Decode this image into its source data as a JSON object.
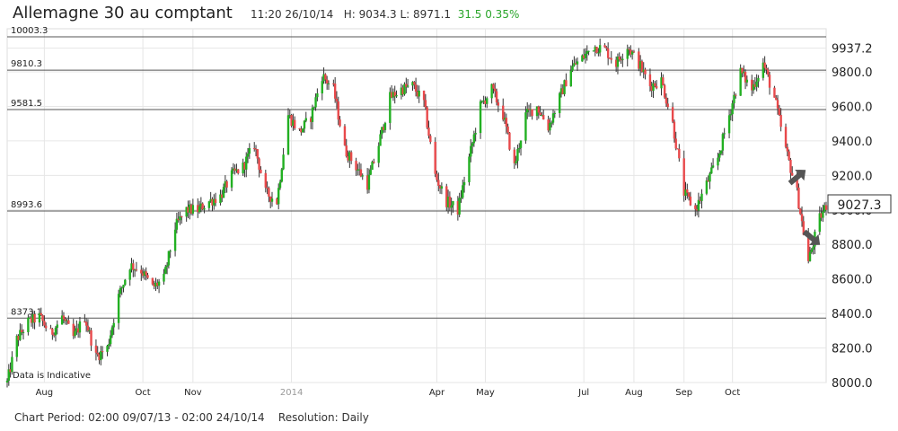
{
  "header": {
    "title": "Allemagne 30 au comptant",
    "time": "11:20 26/10/14",
    "high_label": "H:",
    "high": "9034.3",
    "low_label": "L:",
    "low": "8971.1",
    "change": "31.5",
    "change_pct": "0.35%"
  },
  "footer": {
    "period_label": "Chart Period:",
    "period": "02:00 09/07/13 - 02:00 24/10/14",
    "resolution_label": "Resolution:",
    "resolution": "Daily"
  },
  "colors": {
    "up": "#22b022",
    "down": "#e8494b",
    "wick": "#333333",
    "grid": "#e6e6e6",
    "level_line": "#555555",
    "positive_text": "#2aa52a",
    "arrow": "#555555"
  },
  "chart_data": {
    "type": "candlestick",
    "annotation": "Data is Indicative",
    "current_value": "9027.3",
    "ylim": [
      8000,
      10050
    ],
    "y_ticks": [
      "8000.0",
      "8200.0",
      "8400.0",
      "8600.0",
      "8800.0",
      "9000.0",
      "9200.0",
      "9400.0",
      "9600.0",
      "9800.0",
      "9937.2"
    ],
    "y_tick_values": [
      8000,
      8200,
      8400,
      8600,
      8800,
      9000,
      9200,
      9400,
      9600,
      9800,
      9937.2
    ],
    "x_ticks": [
      "Aug",
      "Oct",
      "Nov",
      "2014",
      "Apr",
      "May",
      "Jul",
      "Aug",
      "Sep",
      "Oct"
    ],
    "x_tick_dates": [
      "2013-08-01",
      "2013-10-01",
      "2013-11-01",
      "2014-01-01",
      "2014-04-01",
      "2014-05-01",
      "2014-07-01",
      "2014-08-01",
      "2014-09-01",
      "2014-10-01"
    ],
    "x_range": [
      "2013-07-09",
      "2014-11-28"
    ],
    "levels": [
      {
        "label": "10003.3",
        "value": 10003.3
      },
      {
        "label": "9810.3",
        "value": 9810.3
      },
      {
        "label": "9581.5",
        "value": 9581.5
      },
      {
        "label": "8993.6",
        "value": 8993.6
      },
      {
        "label": "8373.1",
        "value": 8373.1
      }
    ],
    "arrows": [
      "up",
      "down"
    ],
    "series_points": [
      [
        "2013-07-09",
        8000
      ],
      [
        "2013-07-15",
        8250
      ],
      [
        "2013-07-22",
        8350
      ],
      [
        "2013-07-29",
        8380
      ],
      [
        "2013-08-05",
        8280
      ],
      [
        "2013-08-12",
        8380
      ],
      [
        "2013-08-19",
        8260
      ],
      [
        "2013-08-26",
        8380
      ],
      [
        "2013-09-02",
        8150
      ],
      [
        "2013-09-09",
        8200
      ],
      [
        "2013-09-16",
        8500
      ],
      [
        "2013-09-23",
        8680
      ],
      [
        "2013-09-30",
        8650
      ],
      [
        "2013-10-07",
        8550
      ],
      [
        "2013-10-14",
        8600
      ],
      [
        "2013-10-21",
        8900
      ],
      [
        "2013-10-28",
        9000
      ],
      [
        "2013-11-04",
        9000
      ],
      [
        "2013-11-11",
        9050
      ],
      [
        "2013-11-18",
        9080
      ],
      [
        "2013-11-25",
        9200
      ],
      [
        "2013-12-02",
        9250
      ],
      [
        "2013-12-09",
        9380
      ],
      [
        "2013-12-16",
        9100
      ],
      [
        "2013-12-23",
        9050
      ],
      [
        "2013-12-30",
        9550
      ],
      [
        "2014-01-06",
        9450
      ],
      [
        "2014-01-13",
        9540
      ],
      [
        "2014-01-20",
        9780
      ],
      [
        "2014-01-27",
        9700
      ],
      [
        "2014-02-03",
        9350
      ],
      [
        "2014-02-10",
        9250
      ],
      [
        "2014-02-17",
        9150
      ],
      [
        "2014-02-24",
        9380
      ],
      [
        "2014-03-03",
        9650
      ],
      [
        "2014-03-10",
        9700
      ],
      [
        "2014-03-17",
        9720
      ],
      [
        "2014-03-24",
        9620
      ],
      [
        "2014-03-31",
        9200
      ],
      [
        "2014-04-07",
        9050
      ],
      [
        "2014-04-14",
        9000
      ],
      [
        "2014-04-21",
        9300
      ],
      [
        "2014-04-28",
        9600
      ],
      [
        "2014-05-05",
        9700
      ],
      [
        "2014-05-12",
        9550
      ],
      [
        "2014-05-19",
        9250
      ],
      [
        "2014-05-26",
        9550
      ],
      [
        "2014-06-02",
        9600
      ],
      [
        "2014-06-09",
        9480
      ],
      [
        "2014-06-16",
        9650
      ],
      [
        "2014-06-23",
        9820
      ],
      [
        "2014-06-30",
        9880
      ],
      [
        "2014-07-07",
        9950
      ],
      [
        "2014-07-14",
        9930
      ],
      [
        "2014-07-21",
        9850
      ],
      [
        "2014-07-28",
        9950
      ],
      [
        "2014-08-04",
        9850
      ],
      [
        "2014-08-11",
        9720
      ],
      [
        "2014-08-18",
        9750
      ],
      [
        "2014-08-25",
        9500
      ],
      [
        "2014-09-01",
        9100
      ],
      [
        "2014-09-08",
        9000
      ],
      [
        "2014-09-15",
        9150
      ],
      [
        "2014-09-22",
        9300
      ],
      [
        "2014-09-29",
        9550
      ],
      [
        "2014-10-06",
        9800
      ],
      [
        "2014-10-13",
        9700
      ],
      [
        "2014-10-20",
        9850
      ],
      [
        "2014-10-27",
        9650
      ],
      [
        "2014-11-03",
        9350
      ],
      [
        "2014-11-10",
        9100
      ],
      [
        "2014-11-17",
        8700
      ],
      [
        "2014-11-24",
        8950
      ],
      [
        "2014-11-28",
        9027
      ]
    ]
  }
}
